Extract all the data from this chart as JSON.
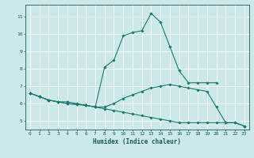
{
  "xlabel": "Humidex (Indice chaleur)",
  "ylabel": "",
  "bg_color": "#cce8e8",
  "line_color": "#1a7a6e",
  "grid_color": "#ffffff",
  "xlim": [
    -0.5,
    23.5
  ],
  "ylim": [
    4.5,
    11.7
  ],
  "xticks": [
    0,
    1,
    2,
    3,
    4,
    5,
    6,
    7,
    8,
    9,
    10,
    11,
    12,
    13,
    14,
    15,
    16,
    17,
    18,
    19,
    20,
    21,
    22,
    23
  ],
  "yticks": [
    5,
    6,
    7,
    8,
    9,
    10,
    11
  ],
  "series": [
    {
      "x": [
        0,
        1,
        2,
        3,
        4,
        5,
        6,
        7,
        8,
        9,
        10,
        11,
        12,
        13,
        14,
        15,
        16,
        17,
        18,
        19,
        20
      ],
      "y": [
        6.6,
        6.4,
        6.2,
        6.1,
        6.1,
        6.0,
        5.9,
        5.8,
        8.1,
        8.5,
        9.9,
        10.1,
        10.2,
        11.2,
        10.7,
        9.3,
        7.9,
        7.2,
        7.2,
        7.2,
        7.2
      ]
    },
    {
      "x": [
        0,
        1,
        2,
        3,
        4,
        5,
        6,
        7,
        8,
        9,
        10,
        11,
        12,
        13,
        14,
        15,
        16,
        17,
        18,
        19,
        20,
        21,
        22,
        23
      ],
      "y": [
        6.6,
        6.4,
        6.2,
        6.1,
        6.0,
        5.95,
        5.9,
        5.8,
        5.8,
        6.0,
        6.3,
        6.5,
        6.7,
        6.9,
        7.0,
        7.1,
        7.0,
        6.9,
        6.8,
        6.7,
        5.8,
        4.9,
        4.9,
        4.7
      ]
    },
    {
      "x": [
        0,
        1,
        2,
        3,
        4,
        5,
        6,
        7,
        8,
        9,
        10,
        11,
        12,
        13,
        14,
        15,
        16,
        17,
        18,
        19,
        20,
        21,
        22,
        23
      ],
      "y": [
        6.6,
        6.4,
        6.2,
        6.1,
        6.0,
        5.95,
        5.9,
        5.8,
        5.7,
        5.6,
        5.5,
        5.4,
        5.3,
        5.2,
        5.1,
        5.0,
        4.9,
        4.9,
        4.9,
        4.9,
        4.9,
        4.9,
        4.9,
        4.7
      ]
    }
  ]
}
